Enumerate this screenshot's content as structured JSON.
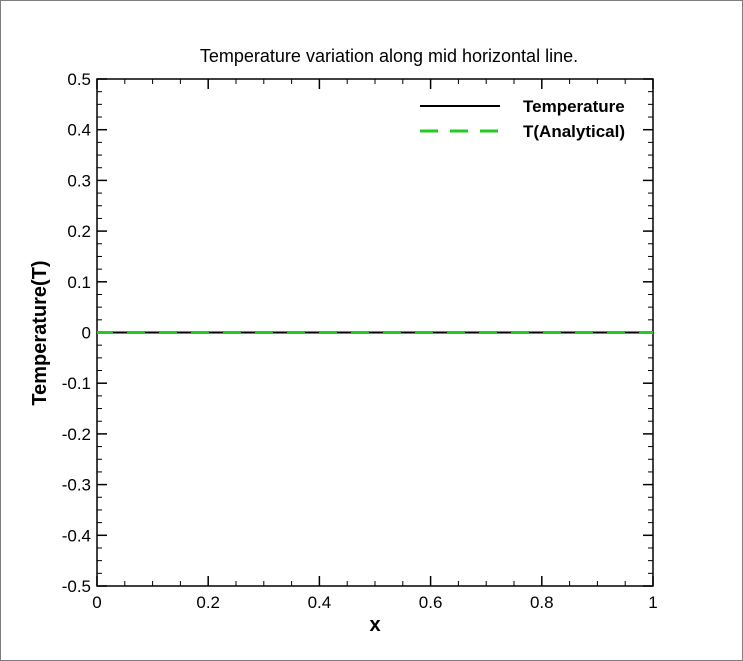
{
  "chart_data": {
    "type": "line",
    "title": "Temperature variation along mid horizontal line.",
    "xlabel": "x",
    "ylabel": "Temperature(T)",
    "xlim": [
      0,
      1
    ],
    "ylim": [
      -0.5,
      0.5
    ],
    "x_ticks": [
      0,
      0.2,
      0.4,
      0.6,
      0.8,
      1
    ],
    "x_tick_labels": [
      "0",
      "0.2",
      "0.4",
      "0.6",
      "0.8",
      "1"
    ],
    "y_ticks": [
      -0.5,
      -0.4,
      -0.3,
      -0.2,
      -0.1,
      0,
      0.1,
      0.2,
      0.3,
      0.4,
      0.5
    ],
    "y_tick_labels": [
      "-0.5",
      "-0.4",
      "-0.3",
      "-0.2",
      "-0.1",
      "0",
      "0.1",
      "0.2",
      "0.3",
      "0.4",
      "0.5"
    ],
    "grid": false,
    "legend_position": "top-right",
    "series": [
      {
        "name": "Temperature",
        "color": "#000000",
        "dash": "solid",
        "x": [
          0,
          0.25,
          0.5,
          0.75,
          1
        ],
        "y": [
          0,
          0,
          0,
          0,
          0
        ]
      },
      {
        "name": "T(Analytical)",
        "color": "#22cc22",
        "dash": "dashed",
        "x": [
          0,
          0.25,
          0.5,
          0.75,
          1
        ],
        "y": [
          0,
          0,
          0,
          0,
          0
        ]
      }
    ]
  }
}
